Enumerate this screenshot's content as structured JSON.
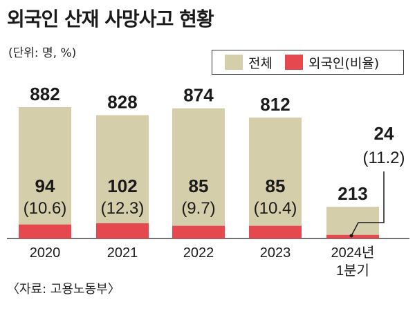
{
  "header": {
    "title": "외국인 산재 사망사고 현황",
    "unit": "(단위: 명, %)",
    "source": "〈자료: 고용노동부〉"
  },
  "colors": {
    "total": "#d5ceab",
    "foreign": "#e5484f"
  },
  "chart_data": {
    "type": "bar",
    "categories": [
      "2020",
      "2021",
      "2022",
      "2023",
      "2024년 1분기"
    ],
    "category_lines": [
      [
        "2020"
      ],
      [
        "2021"
      ],
      [
        "2022"
      ],
      [
        "2023"
      ],
      [
        "2024년",
        "1분기"
      ]
    ],
    "series": [
      {
        "name": "전체",
        "values": [
          882,
          828,
          874,
          812,
          213
        ]
      },
      {
        "name": "외국인(비율)",
        "values": [
          94,
          102,
          85,
          85,
          24
        ]
      }
    ],
    "total_labels": [
      "882",
      "828",
      "874",
      "812",
      "213"
    ],
    "foreign_labels": [
      "94",
      "102",
      "85",
      "85",
      "24"
    ],
    "ratio_labels": [
      "(10.6)",
      "(12.3)",
      "(9.7)",
      "(10.4)",
      "(11.2)"
    ],
    "ratios": [
      10.6,
      12.3,
      9.7,
      10.4,
      11.2
    ],
    "ylim": [
      0,
      1000
    ],
    "legend_position": "top-right"
  }
}
